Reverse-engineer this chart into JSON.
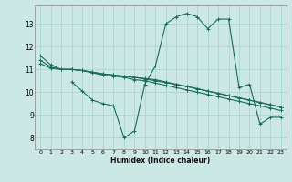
{
  "xlabel": "Humidex (Indice chaleur)",
  "ylabel": "",
  "bg_color": "#cce8e4",
  "line_color": "#1a6b5a",
  "grid_color": "#b0d8d0",
  "xlim": [
    -0.5,
    23.5
  ],
  "ylim": [
    7.5,
    13.8
  ],
  "xticks": [
    0,
    1,
    2,
    3,
    4,
    5,
    6,
    7,
    8,
    9,
    10,
    11,
    12,
    13,
    14,
    15,
    16,
    17,
    18,
    19,
    20,
    21,
    22,
    23
  ],
  "yticks": [
    8,
    9,
    10,
    11,
    12,
    13
  ],
  "lines": [
    {
      "x": [
        0,
        1,
        2,
        3,
        4,
        5,
        6,
        7,
        8,
        9,
        10,
        11,
        12,
        13,
        14,
        15,
        16,
        17,
        18,
        19,
        20,
        21,
        22,
        23
      ],
      "y": [
        11.6,
        11.2,
        11.0,
        11.0,
        10.95,
        10.85,
        10.75,
        10.7,
        10.65,
        10.55,
        10.5,
        10.4,
        10.3,
        10.2,
        10.1,
        10.0,
        9.9,
        9.8,
        9.7,
        9.6,
        9.5,
        9.4,
        9.3,
        9.2
      ]
    },
    {
      "x": [
        0,
        1,
        2,
        3,
        4,
        5,
        6,
        7,
        8,
        9,
        10,
        11,
        12,
        13,
        14,
        15,
        16,
        17,
        18,
        19,
        20,
        21,
        22,
        23
      ],
      "y": [
        11.4,
        11.1,
        11.0,
        11.0,
        10.95,
        10.88,
        10.8,
        10.75,
        10.7,
        10.65,
        10.6,
        10.55,
        10.45,
        10.35,
        10.25,
        10.15,
        10.05,
        9.95,
        9.85,
        9.75,
        9.65,
        9.55,
        9.45,
        9.35
      ]
    },
    {
      "x": [
        3,
        4,
        5,
        6,
        7,
        8,
        9,
        10,
        11,
        12,
        13,
        14,
        15,
        16,
        17,
        18,
        19,
        20,
        21,
        22,
        23
      ],
      "y": [
        10.45,
        10.05,
        9.65,
        9.5,
        9.4,
        8.0,
        8.3,
        10.35,
        11.15,
        13.0,
        13.3,
        13.45,
        13.3,
        12.78,
        13.2,
        13.2,
        10.2,
        10.35,
        8.6,
        8.9,
        8.9
      ]
    },
    {
      "x": [
        0,
        1,
        2,
        3,
        4,
        5,
        6,
        7,
        8,
        9,
        10,
        11,
        12,
        13,
        14,
        15,
        16,
        17,
        18,
        19,
        20,
        21,
        22,
        23
      ],
      "y": [
        11.25,
        11.05,
        11.0,
        11.0,
        10.95,
        10.88,
        10.8,
        10.75,
        10.7,
        10.65,
        10.58,
        10.5,
        10.42,
        10.34,
        10.25,
        10.15,
        10.05,
        9.95,
        9.85,
        9.75,
        9.65,
        9.55,
        9.45,
        9.35
      ]
    }
  ]
}
